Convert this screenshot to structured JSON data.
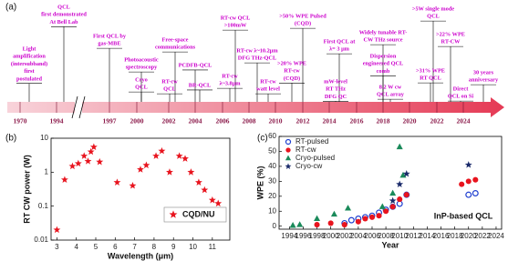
{
  "chart_data": [
    {
      "type": "timeline",
      "panel_label": "(a)",
      "years": [
        "1970",
        "1994",
        "1997",
        "2000",
        "2002",
        "2004",
        "2006",
        "2008",
        "2010",
        "2012",
        "2014",
        "2016",
        "2018",
        "2020",
        "2022",
        "2024"
      ],
      "events": [
        {
          "lines": [
            "Light",
            "amplification",
            "(intersubband)",
            "first",
            "postulated"
          ]
        },
        {
          "lines": [
            "QCL",
            "first demonstrated",
            "At Bell Lab"
          ]
        },
        {
          "lines": [
            "First QCL by",
            "gas-MBE"
          ]
        },
        {
          "lines": [
            "Photoacoustic",
            "spectroscopy"
          ]
        },
        {
          "lines": [
            "Cryo",
            "QCL"
          ]
        },
        {
          "lines": [
            "Free-space",
            "communications"
          ]
        },
        {
          "lines": [
            "PCDFB-QCL"
          ]
        },
        {
          "lines": [
            "RT-cw",
            "QCL"
          ]
        },
        {
          "lines": [
            "BR-QCL"
          ]
        },
        {
          "lines": [
            "RT-cw QCL",
            ">100mW"
          ]
        },
        {
          "lines": [
            "RT-cw λ~10.2μm",
            "DFG THz-QCL"
          ]
        },
        {
          "lines": [
            "RT-cw",
            "λ~3.8μm"
          ]
        },
        {
          "lines": [
            "RT-cw",
            "watt level"
          ]
        },
        {
          "lines": [
            ">50% WPE Pulsed",
            "(CQD)"
          ]
        },
        {
          "lines": [
            "First QCL at",
            "λ= 3 μm"
          ]
        },
        {
          "lines": [
            ">20% WPE",
            "RT-cw",
            "(CQD)"
          ]
        },
        {
          "lines": [
            "mW-level",
            "RT THz",
            "DFG QC"
          ]
        },
        {
          "lines": [
            "Widely tunable RT-",
            "CW THz source"
          ]
        },
        {
          "lines": [
            "Dispersion",
            "engineered QCL",
            "comb"
          ]
        },
        {
          "lines": [
            "8.2 W cw",
            "QCL array"
          ]
        },
        {
          "lines": [
            ">5W single mode",
            "QCL"
          ]
        },
        {
          "lines": [
            ">22% WPE",
            "RT-CW"
          ]
        },
        {
          "lines": [
            ">31% WPE",
            "RT QCL"
          ]
        },
        {
          "lines": [
            "Direct",
            "QCL on Si"
          ]
        },
        {
          "lines": [
            "30 years",
            "anniversary"
          ]
        }
      ]
    },
    {
      "type": "scatter",
      "panel_label": "(b)",
      "x_label": "Wavelength (μm)",
      "y_label": "RT CW power (W)",
      "y_log": true,
      "xlim": [
        2.7,
        11.9
      ],
      "ylim": [
        0.01,
        10
      ],
      "xticks": [
        3,
        4,
        5,
        6,
        7,
        8,
        9,
        10,
        11
      ],
      "yticks": [
        0.01,
        0.1,
        1,
        10
      ],
      "legend": "lower right",
      "series": [
        {
          "name": "CQD/NU",
          "color": "#e8141e",
          "marker": "star",
          "x": [
            3.0,
            3.4,
            3.8,
            4.1,
            4.4,
            4.6,
            4.75,
            4.9,
            5.2,
            6.1,
            6.9,
            7.3,
            7.6,
            8.1,
            8.4,
            8.8,
            9.3,
            9.6,
            9.9,
            10.3,
            10.6,
            11.0,
            11.3
          ],
          "values": [
            0.02,
            0.6,
            1.5,
            1.8,
            3.0,
            2.1,
            4.0,
            5.5,
            2.0,
            0.5,
            0.4,
            1.2,
            1.6,
            3.0,
            4.2,
            1.0,
            3.0,
            2.5,
            1.0,
            0.5,
            0.3,
            0.15,
            0.12
          ]
        }
      ]
    },
    {
      "type": "scatter",
      "panel_label": "(c)",
      "x_label": "Year",
      "y_label": "WPE (%)",
      "xlim": [
        1992.5,
        2024.8
      ],
      "ylim": [
        -2,
        60
      ],
      "xticks": [
        1994,
        1996,
        1998,
        2000,
        2002,
        2004,
        2006,
        2008,
        2010,
        2012,
        2014,
        2016,
        2018,
        2020,
        2022,
        2024
      ],
      "yticks": [
        0,
        10,
        20,
        30,
        40,
        50,
        60
      ],
      "legend": "upper left",
      "annotation": "InP-based QCL",
      "annotation_color": "#e8141e",
      "series": [
        {
          "name": "RT-pulsed",
          "color": "#1f3fd0",
          "marker": "open-circle",
          "x": [
            2002,
            2003,
            2004,
            2005,
            2006,
            2007,
            2008,
            2009,
            2010,
            2011,
            2020,
            2021
          ],
          "values": [
            2,
            4,
            5,
            6,
            7,
            9,
            11,
            13,
            15,
            21,
            21,
            22
          ]
        },
        {
          "name": "RT-cw",
          "color": "#e8141e",
          "marker": "circle",
          "x": [
            1998,
            2000,
            2002,
            2004,
            2005,
            2006,
            2007,
            2008,
            2009,
            2010,
            2011,
            2019,
            2020,
            2021
          ],
          "values": [
            1,
            2,
            1,
            3,
            5,
            6,
            7,
            10,
            13,
            18,
            21,
            28,
            30,
            31
          ]
        },
        {
          "name": "Cryo-pulsed",
          "color": "#1a8a5a",
          "marker": "triangle",
          "x": [
            1994.5,
            1995.5,
            1998,
            2000.5,
            2002.5,
            2007.5,
            2009,
            2010,
            2010.5
          ],
          "values": [
            0.5,
            1,
            5,
            8,
            12,
            13,
            22,
            53,
            34
          ]
        },
        {
          "name": "Cryo-cw",
          "color": "#1a2a6a",
          "marker": "star",
          "x": [
            2009,
            2010,
            2011,
            2020
          ],
          "values": [
            17,
            28,
            35,
            41
          ]
        }
      ]
    }
  ]
}
